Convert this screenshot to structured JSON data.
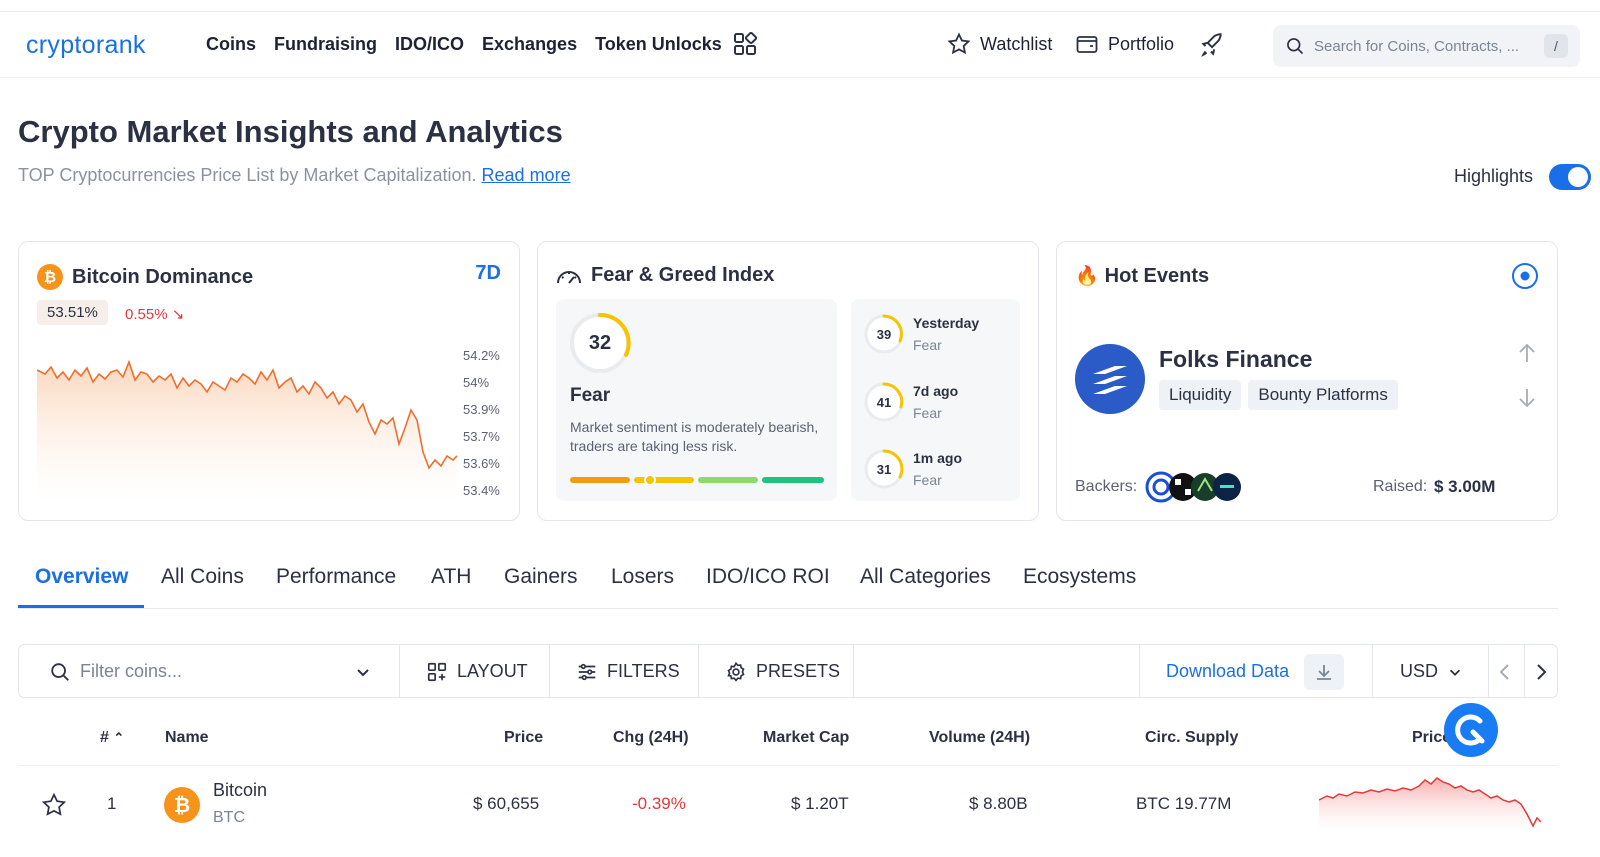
{
  "header": {
    "logo": "cryptorank",
    "nav": [
      "Coins",
      "Fundraising",
      "IDO/ICO",
      "Exchanges",
      "Token Unlocks"
    ],
    "watchlist": "Watchlist",
    "portfolio": "Portfolio",
    "search_placeholder": "Search for Coins, Contracts, ...",
    "search_shortcut": "/"
  },
  "page": {
    "title": "Crypto Market Insights and Analytics",
    "subtitle": "TOP Cryptocurrencies Price List by Market Capitalization.",
    "read_more": "Read more",
    "highlights_label": "Highlights",
    "highlights_on": true
  },
  "dominance": {
    "title": "Bitcoin Dominance",
    "period": "7D",
    "value": "53.51%",
    "change": "0.55%",
    "yticks": [
      "54.2%",
      "54%",
      "53.9%",
      "53.7%",
      "53.6%",
      "53.4%"
    ]
  },
  "fear_greed": {
    "title": "Fear & Greed Index",
    "value": "32",
    "label": "Fear",
    "description": "Market sentiment is moderately bearish, traders are taking less risk.",
    "history": [
      {
        "value": "39",
        "label": "Yesterday",
        "status": "Fear"
      },
      {
        "value": "41",
        "label": "7d ago",
        "status": "Fear"
      },
      {
        "value": "31",
        "label": "1m ago",
        "status": "Fear"
      }
    ]
  },
  "hot_events": {
    "title": "Hot Events",
    "project": "Folks Finance",
    "tags": [
      "Liquidity",
      "Bounty Platforms"
    ],
    "backers_label": "Backers:",
    "raised_label": "Raised:",
    "raised_value": "$ 3.00M"
  },
  "tabs": [
    "Overview",
    "All Coins",
    "Performance",
    "ATH",
    "Gainers",
    "Losers",
    "IDO/ICO ROI",
    "All Categories",
    "Ecosystems"
  ],
  "toolbar": {
    "filter_placeholder": "Filter coins...",
    "layout": "LAYOUT",
    "filters": "FILTERS",
    "presets": "PRESETS",
    "download": "Download Data",
    "currency": "USD"
  },
  "table": {
    "headers": {
      "rank": "#",
      "name": "Name",
      "price": "Price",
      "chg": "Chg (24H)",
      "mcap": "Market Cap",
      "volume": "Volume (24H)",
      "supply": "Circ. Supply",
      "chart": "Price (7D)"
    },
    "rows": [
      {
        "rank": "1",
        "name": "Bitcoin",
        "symbol": "BTC",
        "price": "$ 60,655",
        "chg": "-0.39%",
        "mcap": "$ 1.20T",
        "volume": "$ 8.80B",
        "supply": "BTC 19.77M"
      }
    ]
  },
  "colors": {
    "accent": "#1a6fe8",
    "negative": "#e03a3a",
    "btc": "#f7931a"
  }
}
